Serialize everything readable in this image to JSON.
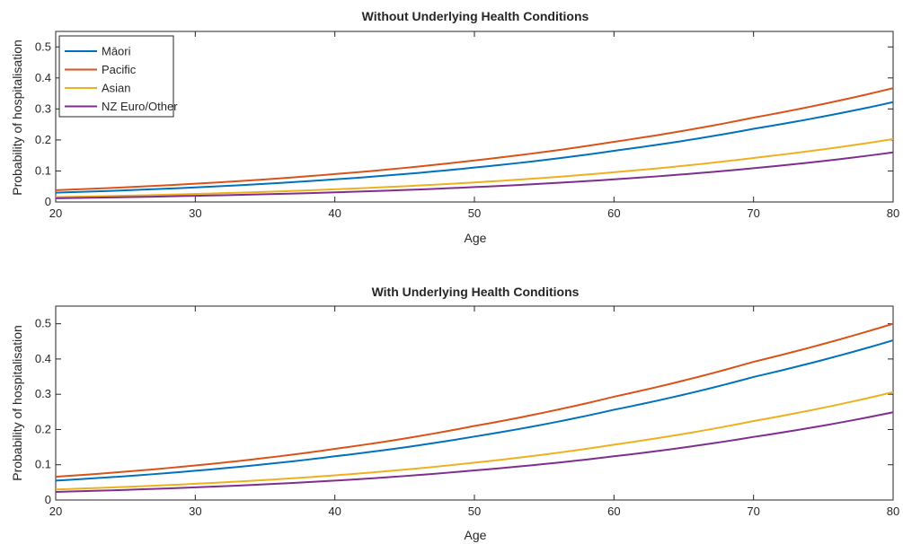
{
  "chart_data": [
    {
      "type": "line",
      "title": "Without Underlying Health Conditions",
      "xlabel": "Age",
      "ylabel": "Probability of hospitalisation",
      "xlim": [
        20,
        80
      ],
      "ylim": [
        0,
        0.55
      ],
      "xticks": [
        "20",
        "30",
        "40",
        "50",
        "60",
        "70",
        "80"
      ],
      "yticks": [
        "0",
        "0.1",
        "0.2",
        "0.3",
        "0.4",
        "0.5"
      ],
      "grid": false,
      "legend": "top-left",
      "x": [
        20,
        30,
        40,
        50,
        60,
        70,
        80
      ],
      "series": [
        {
          "name": "Māori",
          "color": "#0072bd",
          "values": [
            0.03,
            0.047,
            0.073,
            0.111,
            0.165,
            0.236,
            0.322
          ]
        },
        {
          "name": "Pacific",
          "color": "#d95319",
          "values": [
            0.038,
            0.059,
            0.09,
            0.134,
            0.194,
            0.272,
            0.367
          ]
        },
        {
          "name": "Asian",
          "color": "#edb120",
          "values": [
            0.016,
            0.026,
            0.041,
            0.063,
            0.096,
            0.142,
            0.203
          ]
        },
        {
          "name": "NZ Euro/Other",
          "color": "#7e2f8e",
          "values": [
            0.012,
            0.02,
            0.031,
            0.048,
            0.073,
            0.109,
            0.16
          ]
        }
      ]
    },
    {
      "type": "line",
      "title": "With Underlying Health Conditions",
      "xlabel": "Age",
      "ylabel": "Probability of hospitalisation",
      "xlim": [
        20,
        80
      ],
      "ylim": [
        0,
        0.55
      ],
      "xticks": [
        "20",
        "30",
        "40",
        "50",
        "60",
        "70",
        "80"
      ],
      "yticks": [
        "0",
        "0.1",
        "0.2",
        "0.3",
        "0.4",
        "0.5"
      ],
      "grid": false,
      "x": [
        20,
        30,
        40,
        50,
        60,
        70,
        80
      ],
      "series": [
        {
          "color": "#0072bd",
          "values": [
            0.055,
            0.083,
            0.124,
            0.18,
            0.256,
            0.349,
            0.453
          ]
        },
        {
          "color": "#d95319",
          "values": [
            0.066,
            0.098,
            0.145,
            0.21,
            0.293,
            0.392,
            0.5
          ]
        },
        {
          "color": "#edb120",
          "values": [
            0.03,
            0.046,
            0.07,
            0.106,
            0.157,
            0.224,
            0.306
          ]
        },
        {
          "color": "#7e2f8e",
          "values": [
            0.023,
            0.036,
            0.055,
            0.084,
            0.124,
            0.179,
            0.249
          ]
        }
      ]
    }
  ]
}
